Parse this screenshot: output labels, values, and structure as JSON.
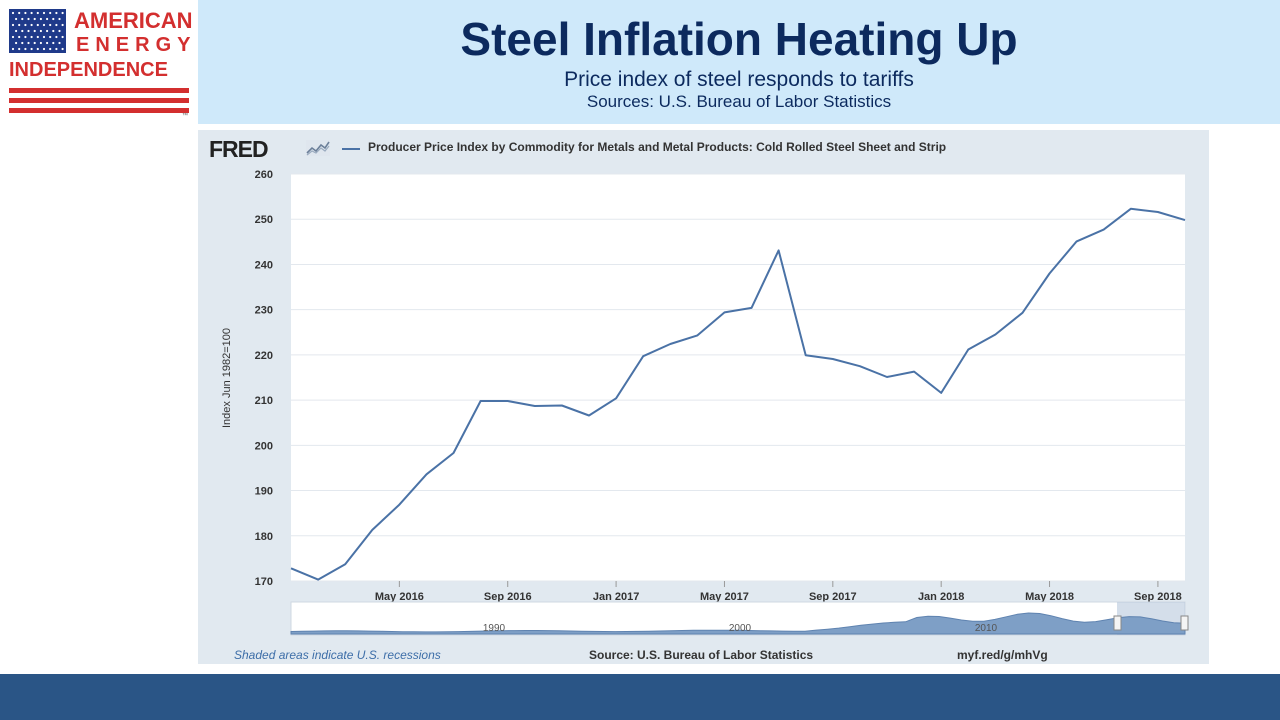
{
  "logo": {
    "line1": "AMERICAN",
    "line2": "ENERGY",
    "line3": "INDEPENDENCE",
    "mark": "™",
    "red": "#d32f2f",
    "blue": "#1f3a8a"
  },
  "header": {
    "title": "Steel Inflation Heating Up",
    "subtitle": "Price index of steel responds to tariffs",
    "sources": "Sources: U.S. Bureau of Labor Statistics"
  },
  "fred": {
    "logo_text": "FRED",
    "series_title": "Producer Price Index by Commodity for Metals and Metal Products: Cold Rolled Steel Sheet and Strip",
    "footer_left": "Shaded areas indicate U.S. recessions",
    "footer_center": "Source: U.S. Bureau of Labor Statistics",
    "footer_right": "myf.red/g/mhVg"
  },
  "chart_data": {
    "type": "line",
    "title": "Producer Price Index by Commodity for Metals and Metal Products: Cold Rolled Steel Sheet and Strip",
    "xlabel": "",
    "ylabel": "Index Jun 1982=100",
    "ylim": [
      170,
      260
    ],
    "yticks": [
      170,
      180,
      190,
      200,
      210,
      220,
      230,
      240,
      250,
      260
    ],
    "x": [
      "Jan 2016",
      "Feb 2016",
      "Mar 2016",
      "Apr 2016",
      "May 2016",
      "Jun 2016",
      "Jul 2016",
      "Aug 2016",
      "Sep 2016",
      "Oct 2016",
      "Nov 2016",
      "Dec 2016",
      "Jan 2017",
      "Feb 2017",
      "Mar 2017",
      "Apr 2017",
      "May 2017",
      "Jun 2017",
      "Jul 2017",
      "Aug 2017",
      "Sep 2017",
      "Oct 2017",
      "Nov 2017",
      "Dec 2017",
      "Jan 2018",
      "Feb 2018",
      "Mar 2018",
      "Apr 2018",
      "May 2018",
      "Jun 2018",
      "Jul 2018",
      "Aug 2018",
      "Sep 2018",
      "Oct 2018"
    ],
    "series": [
      {
        "name": "Producer Price Index by Commodity for Metals and Metal Products: Cold Rolled Steel Sheet and Strip",
        "color": "#4a72a6",
        "values": [
          172.8,
          170.3,
          173.7,
          181.3,
          186.9,
          193.6,
          198.3,
          209.8,
          209.8,
          208.7,
          208.8,
          206.6,
          210.4,
          219.7,
          222.4,
          224.3,
          229.4,
          230.4,
          243.1,
          219.9,
          219.1,
          217.5,
          215.1,
          216.3,
          211.6,
          221.2,
          224.5,
          229.3,
          238.0,
          245.1,
          247.7,
          252.3,
          251.6,
          249.8
        ]
      }
    ],
    "xticks": [
      {
        "label": "May 2016",
        "index": 4
      },
      {
        "label": "Sep 2016",
        "index": 8
      },
      {
        "label": "Jan 2017",
        "index": 12
      },
      {
        "label": "May 2017",
        "index": 16
      },
      {
        "label": "Sep 2017",
        "index": 20
      },
      {
        "label": "Jan 2018",
        "index": 24
      },
      {
        "label": "May 2018",
        "index": 28
      },
      {
        "label": "Sep 2018",
        "index": 32
      }
    ],
    "navigator": {
      "labels": [
        "1990",
        "2000",
        "2010"
      ],
      "series_color": "#7e9fc6"
    }
  }
}
